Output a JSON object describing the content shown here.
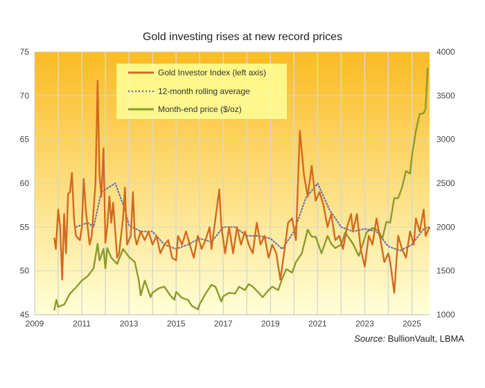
{
  "chart_data": {
    "type": "line",
    "title": "Gold investing rises at new record prices",
    "source_label": "Source:",
    "source_text": " BullionVault,  LBMA",
    "xlim": [
      2009,
      2025.75
    ],
    "x_ticks": [
      2009,
      2011,
      2013,
      2015,
      2017,
      2019,
      2021,
      2023,
      2025
    ],
    "y_left": {
      "range": [
        45,
        75
      ],
      "ticks": [
        45,
        50,
        55,
        60,
        65,
        70,
        75
      ]
    },
    "y_right": {
      "range": [
        1000,
        4000
      ],
      "ticks": [
        1000,
        1500,
        2000,
        2500,
        3000,
        3500,
        4000
      ]
    },
    "grid": true,
    "legend_position": "top-center",
    "colors": {
      "index": "#d2691e",
      "average": "#7070a0",
      "price": "#8a9a2a",
      "bg_top": "#fbbb22",
      "bg_bottom": "#ffffd8"
    },
    "series": [
      {
        "name": "Gold Investor Index (left axis)",
        "axis": "left",
        "style": "solid",
        "x": [
          2009.83,
          2009.9,
          2010.0,
          2010.08,
          2010.17,
          2010.25,
          2010.33,
          2010.42,
          2010.5,
          2010.58,
          2010.67,
          2010.75,
          2010.92,
          2011.0,
          2011.08,
          2011.17,
          2011.33,
          2011.42,
          2011.5,
          2011.58,
          2011.67,
          2011.75,
          2011.83,
          2011.92,
          2012.0,
          2012.08,
          2012.17,
          2012.25,
          2012.33,
          2012.5,
          2012.58,
          2012.75,
          2012.83,
          2012.92,
          2013.08,
          2013.17,
          2013.25,
          2013.33,
          2013.5,
          2013.67,
          2013.83,
          2014.0,
          2014.17,
          2014.33,
          2014.5,
          2014.67,
          2014.83,
          2015.0,
          2015.08,
          2015.25,
          2015.42,
          2015.58,
          2015.75,
          2015.92,
          2016.08,
          2016.25,
          2016.42,
          2016.5,
          2016.67,
          2016.83,
          2016.92,
          2017.08,
          2017.25,
          2017.42,
          2017.58,
          2017.75,
          2017.92,
          2018.08,
          2018.25,
          2018.42,
          2018.58,
          2018.75,
          2018.92,
          2019.08,
          2019.25,
          2019.42,
          2019.58,
          2019.75,
          2019.92,
          2020.08,
          2020.25,
          2020.42,
          2020.58,
          2020.75,
          2020.92,
          2021.08,
          2021.25,
          2021.42,
          2021.58,
          2021.75,
          2021.92,
          2022.08,
          2022.25,
          2022.42,
          2022.5,
          2022.67,
          2022.83,
          2023.0,
          2023.17,
          2023.33,
          2023.5,
          2023.67,
          2023.83,
          2024.0,
          2024.08,
          2024.25,
          2024.42,
          2024.58,
          2024.75,
          2024.92,
          2025.08,
          2025.17,
          2025.33,
          2025.5,
          2025.58,
          2025.75
        ],
        "values": [
          53.8,
          52.5,
          57,
          55,
          49,
          56.5,
          52,
          58.8,
          59,
          61.2,
          56,
          54,
          53.5,
          55,
          60.5,
          57,
          53,
          54,
          57,
          60,
          71.7,
          61,
          58.5,
          64,
          53.2,
          55,
          58.5,
          55.5,
          57.8,
          51.5,
          52,
          56,
          59.5,
          53,
          54,
          59,
          54,
          53,
          54.5,
          53.5,
          54.5,
          53,
          54,
          52,
          53,
          53.5,
          51.5,
          51.2,
          54,
          53,
          54.5,
          53,
          51.5,
          54,
          52.5,
          53.5,
          55,
          52.5,
          56,
          59.3,
          55,
          52,
          55,
          52,
          55,
          53,
          54.5,
          53,
          52,
          55.5,
          53,
          54,
          51.5,
          53,
          52,
          49,
          52,
          55.5,
          56,
          53.5,
          66,
          61,
          58.5,
          62,
          58,
          59,
          57.5,
          55,
          56.5,
          53.5,
          54,
          52.5,
          55,
          56.5,
          54.5,
          56.5,
          52.5,
          50.5,
          54,
          53,
          56,
          53.5,
          51,
          52,
          51,
          47.5,
          54,
          52.5,
          51.5,
          54.5,
          53,
          56,
          54.5,
          57,
          54,
          55
        ]
      },
      {
        "name": "12-month rolling average",
        "axis": "left",
        "style": "dotted",
        "x": [
          2010.75,
          2011.25,
          2011.5,
          2011.83,
          2012.42,
          2012.83,
          2013.0,
          2013.5,
          2014.0,
          2014.5,
          2015.0,
          2015.5,
          2016.0,
          2016.5,
          2017.0,
          2017.5,
          2018.0,
          2018.5,
          2019.0,
          2019.5,
          2020.0,
          2020.5,
          2021.0,
          2021.5,
          2022.0,
          2022.5,
          2023.0,
          2023.5,
          2024.0,
          2024.5,
          2025.0,
          2025.5,
          2025.75
        ],
        "values": [
          55,
          55.5,
          55,
          59,
          60,
          57,
          55.2,
          54.5,
          54.5,
          53,
          52.5,
          53,
          53.7,
          53.3,
          55,
          55,
          54,
          54,
          53.7,
          52.5,
          54.5,
          58.3,
          60,
          57,
          55,
          54.5,
          54.8,
          54.5,
          52.8,
          52.3,
          53,
          54.8,
          55
        ]
      },
      {
        "name": "Month-end price ($/oz)",
        "axis": "right",
        "style": "solid",
        "x": [
          2009.83,
          2009.92,
          2010.0,
          2010.25,
          2010.5,
          2010.75,
          2011.0,
          2011.25,
          2011.5,
          2011.67,
          2011.75,
          2011.92,
          2012.0,
          2012.08,
          2012.25,
          2012.5,
          2012.75,
          2013.0,
          2013.25,
          2013.42,
          2013.5,
          2013.67,
          2013.92,
          2014.0,
          2014.25,
          2014.5,
          2014.75,
          2014.92,
          2015.0,
          2015.25,
          2015.5,
          2015.67,
          2015.92,
          2016.0,
          2016.25,
          2016.5,
          2016.67,
          2016.92,
          2017.0,
          2017.25,
          2017.5,
          2017.67,
          2017.92,
          2018.08,
          2018.25,
          2018.5,
          2018.67,
          2018.92,
          2019.08,
          2019.33,
          2019.5,
          2019.67,
          2019.92,
          2020.08,
          2020.33,
          2020.58,
          2020.75,
          2020.92,
          2021.17,
          2021.42,
          2021.58,
          2021.75,
          2022.0,
          2022.17,
          2022.5,
          2022.75,
          2022.92,
          2023.08,
          2023.33,
          2023.58,
          2023.75,
          2023.92,
          2024.08,
          2024.25,
          2024.42,
          2024.58,
          2024.75,
          2024.92,
          2025.0,
          2025.17,
          2025.33,
          2025.5,
          2025.58,
          2025.67
        ],
        "values": [
          1050,
          1170,
          1090,
          1115,
          1240,
          1310,
          1390,
          1440,
          1530,
          1810,
          1620,
          1750,
          1530,
          1760,
          1650,
          1580,
          1750,
          1660,
          1600,
          1390,
          1220,
          1390,
          1200,
          1250,
          1300,
          1320,
          1220,
          1170,
          1260,
          1190,
          1170,
          1100,
          1060,
          1120,
          1240,
          1340,
          1320,
          1150,
          1210,
          1250,
          1240,
          1320,
          1280,
          1350,
          1320,
          1250,
          1200,
          1280,
          1320,
          1280,
          1410,
          1520,
          1480,
          1600,
          1700,
          1970,
          1890,
          1890,
          1700,
          1900,
          1810,
          1760,
          1800,
          1940,
          1810,
          1670,
          1810,
          1940,
          1990,
          1960,
          1870,
          2060,
          2050,
          2330,
          2330,
          2450,
          2640,
          2610,
          2810,
          3100,
          3290,
          3300,
          3350,
          3820
        ]
      }
    ]
  }
}
